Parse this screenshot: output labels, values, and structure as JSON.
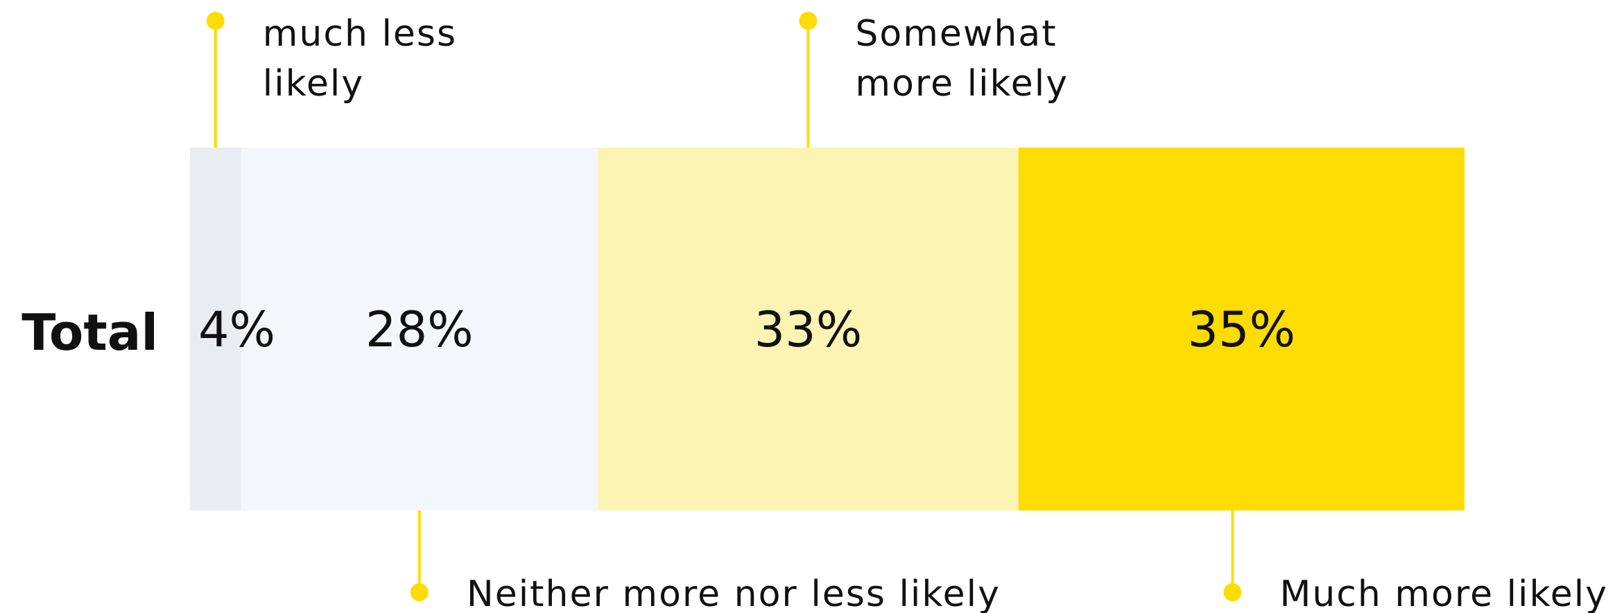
{
  "chart_data": {
    "type": "bar",
    "orientation": "horizontal-stacked-100",
    "categories": [
      "Total"
    ],
    "series": [
      {
        "name": "much less likely",
        "values": [
          4
        ],
        "color": "#E9EDF2"
      },
      {
        "name": "Neither more nor less likely",
        "values": [
          28
        ],
        "color": "#F3F6FA"
      },
      {
        "name": "Somewhat more likely",
        "values": [
          33
        ],
        "color": "#FCF4B3"
      },
      {
        "name": "Much more likely",
        "values": [
          35
        ],
        "color": "#FDDC02"
      }
    ],
    "data_labels": [
      "4%",
      "28%",
      "33%",
      "35%"
    ],
    "annotations": [
      {
        "series_index": 0,
        "side": "top",
        "lines": [
          "much less",
          "likely"
        ]
      },
      {
        "series_index": 2,
        "side": "top",
        "lines": [
          "Somewhat",
          "more likely"
        ]
      },
      {
        "series_index": 1,
        "side": "bottom",
        "lines": [
          "Neither more nor less likely"
        ]
      },
      {
        "series_index": 3,
        "side": "bottom",
        "lines": [
          "Much more likely"
        ]
      }
    ],
    "accent_color": "#FDDC02"
  }
}
